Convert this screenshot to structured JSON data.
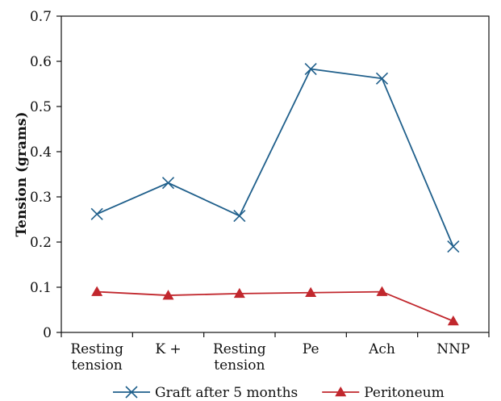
{
  "chart_data": {
    "type": "line",
    "categories": [
      [
        "Resting",
        "tension"
      ],
      [
        "K +"
      ],
      [
        "Resting",
        "tension"
      ],
      [
        "Pe"
      ],
      [
        "Ach"
      ],
      [
        "NNP"
      ]
    ],
    "ylabel": "Tension (grams)",
    "xlabel": "",
    "ylim": [
      0,
      0.7
    ],
    "yticks": [
      "0",
      "0.1",
      "0.2",
      "0.3",
      "0.4",
      "0.5",
      "0.6",
      "0.7"
    ],
    "grid": false,
    "legend_position": "bottom",
    "series": [
      {
        "name": "Graft after 5 months",
        "values": [
          0.262,
          0.331,
          0.258,
          0.583,
          0.562,
          0.19
        ],
        "color": "#1f5f8b",
        "marker": "x"
      },
      {
        "name": "Peritoneum",
        "values": [
          0.09,
          0.082,
          0.086,
          0.088,
          0.09,
          0.025
        ],
        "color": "#c1272d",
        "marker": "triangle"
      }
    ]
  }
}
